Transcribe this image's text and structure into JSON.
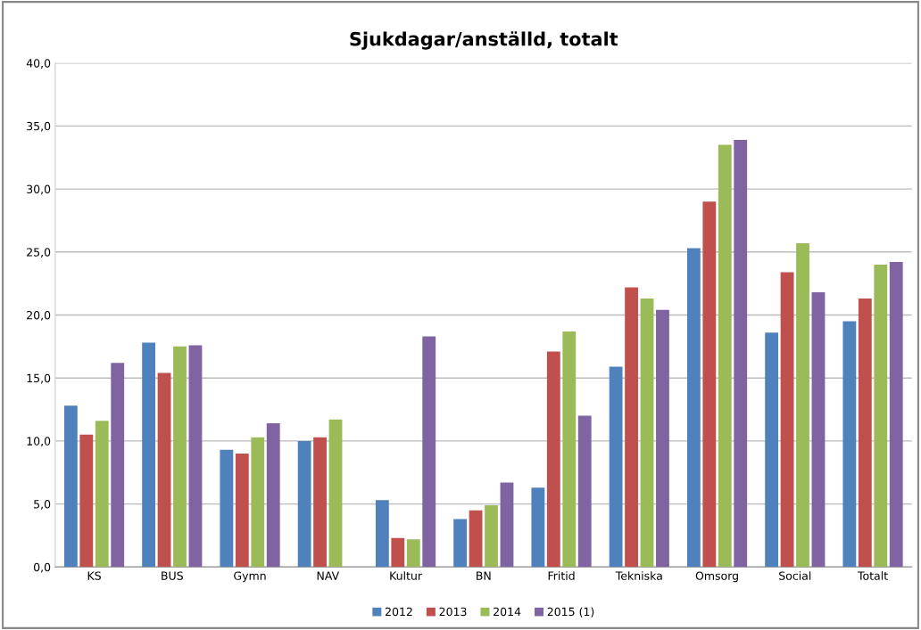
{
  "chart_data": {
    "type": "bar",
    "title": "Sjukdagar/anställd, totalt",
    "categories": [
      "KS",
      "BUS",
      "Gymn",
      "NAV",
      "Kultur",
      "BN",
      "Fritid",
      "Tekniska",
      "Omsorg",
      "Social",
      "Totalt"
    ],
    "series": [
      {
        "name": "2012",
        "color": "#4f81bd",
        "values": [
          12.8,
          17.8,
          9.3,
          10.0,
          5.3,
          3.8,
          6.3,
          15.9,
          25.3,
          18.6,
          19.5
        ]
      },
      {
        "name": "2013",
        "color": "#c0504d",
        "values": [
          10.5,
          15.4,
          9.0,
          10.3,
          2.3,
          4.5,
          17.1,
          22.2,
          29.0,
          23.4,
          21.3
        ]
      },
      {
        "name": "2014",
        "color": "#9bbb59",
        "values": [
          11.6,
          17.5,
          10.3,
          11.7,
          2.2,
          4.9,
          18.7,
          21.3,
          33.5,
          25.7,
          24.0
        ]
      },
      {
        "name": "2015 (1)",
        "color": "#8064a2",
        "values": [
          16.2,
          17.6,
          11.4,
          null,
          18.3,
          6.7,
          12.0,
          20.4,
          33.9,
          21.8,
          24.2
        ]
      }
    ],
    "ylim": [
      0,
      40
    ],
    "yticks": [
      {
        "value": 0,
        "label": "0,0"
      },
      {
        "value": 5,
        "label": "5,0"
      },
      {
        "value": 10,
        "label": "10,0"
      },
      {
        "value": 15,
        "label": "15,0"
      },
      {
        "value": 20,
        "label": "20,0"
      },
      {
        "value": 25,
        "label": "25,0"
      },
      {
        "value": 30,
        "label": "30,0"
      },
      {
        "value": 35,
        "label": "35,0"
      },
      {
        "value": 40,
        "label": "40,0"
      }
    ],
    "grid": "y",
    "legend": "bottom"
  }
}
